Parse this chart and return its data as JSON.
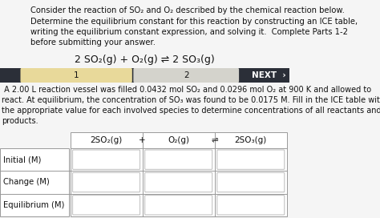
{
  "bg_color": "#f5f5f5",
  "top_text_lines": [
    "Consider the reaction of SO₂ and O₂ described by the chemical reaction below.",
    "Determine the equilibrium constant for this reaction by constructing an ICE table,",
    "writing the equilibrium constant expression, and solving it.  Complete Parts 1-2",
    "before submitting your answer."
  ],
  "equation": "2 SO₂(g) + O₂(g) ⇌ 2 SO₃(g)",
  "nav_bar_bg": "#2b2f38",
  "nav_tab1_bg": "#e8d99a",
  "nav_tab1_text": "1",
  "nav_tab2_bg": "#d4d3cc",
  "nav_tab2_text": "2",
  "nav_next_text": "NEXT  ›",
  "body_text_lines": [
    " A 2.00 L reaction vessel was filled 0.0432 mol SO₂ and 0.0296 mol O₂ at 900 K and allowed to",
    "react. At equilibrium, the concentration of SO₃ was found to be 0.0175 M. Fill in the ICE table with",
    "the appropriate value for each involved species to determine concentrations of all reactants and",
    "products."
  ],
  "table_header": [
    "2SO₂(g)",
    "+",
    "O₂(g)",
    "⇌",
    "2SO₃(g)"
  ],
  "row_labels": [
    "Initial (M)",
    "Change (M)",
    "Equilibrium (M)"
  ],
  "text_color": "#111111",
  "font_size_top": 7.2,
  "font_size_eq": 9.0,
  "font_size_body": 7.0,
  "font_size_table_header": 7.5,
  "font_size_table_label": 7.2,
  "font_size_nav": 7.5
}
